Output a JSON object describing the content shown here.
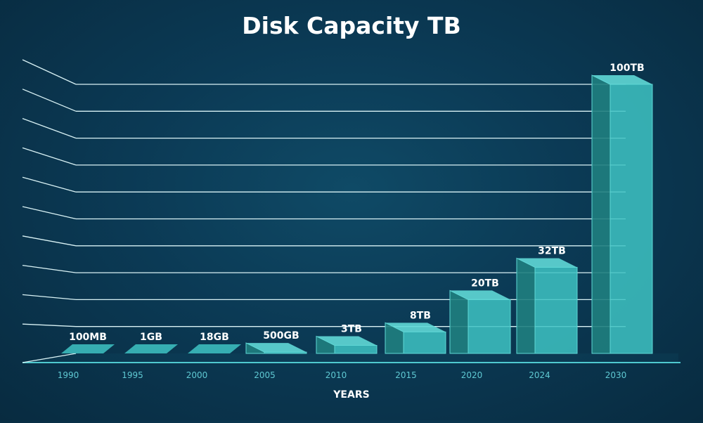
{
  "chart_data": {
    "type": "bar",
    "title": "Disk Capacity TB",
    "xlabel": "YEARS",
    "ylabel": "",
    "categories": [
      "1990",
      "1995",
      "2000",
      "2005",
      "2010",
      "2015",
      "2020",
      "2024",
      "2030"
    ],
    "values": [
      0.0001,
      0.001,
      0.018,
      0.5,
      3,
      8,
      20,
      32,
      100
    ],
    "value_labels": [
      "100MB",
      "1GB",
      "18GB",
      "500GB",
      "3TB",
      "8TB",
      "20TB",
      "32TB",
      "100TB"
    ],
    "ylim": [
      0,
      100
    ],
    "grid": true,
    "colors": {
      "bar_front": "#3ec3c3",
      "bar_side": "#1f7f80",
      "bar_top": "#5fd8d6",
      "grid_line": "#d9f2f5",
      "axis_line": "#4fc9cf",
      "tick_text": "#5fc9d3",
      "title_text": "#ffffff",
      "label_text": "#ffffff"
    }
  }
}
